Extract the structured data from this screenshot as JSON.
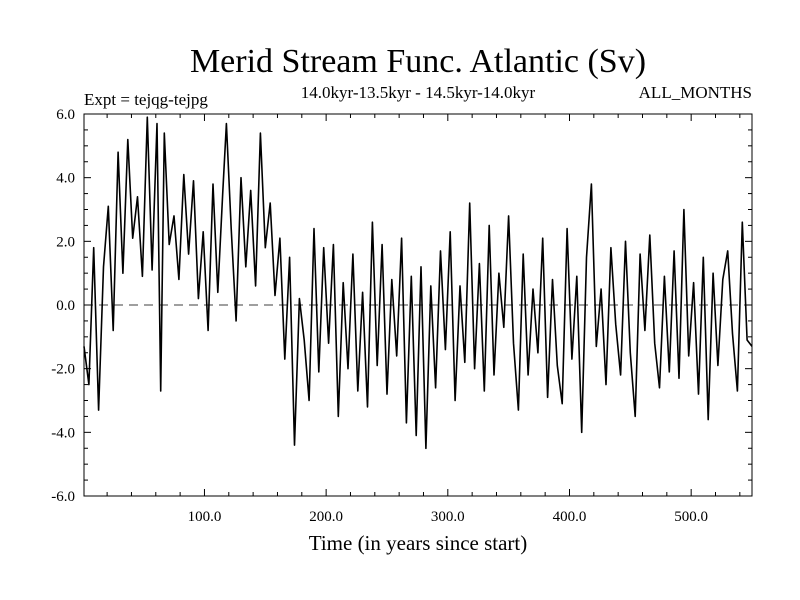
{
  "chart_data": {
    "type": "line",
    "title": "Merid Stream Func. Atlantic (Sv)",
    "subtitle_left": "Expt = tejqg-tejpg",
    "subtitle_center": "14.0kyr-13.5kyr - 14.5kyr-14.0kyr",
    "subtitle_right": "ALL_MONTHS",
    "xlabel": "Time (in years since start)",
    "ylabel": "",
    "xlim": [
      1,
      550
    ],
    "ylim": [
      -6,
      6
    ],
    "xticks": [
      100,
      200,
      300,
      400,
      500
    ],
    "xtick_labels": [
      "100.0",
      "200.0",
      "300.0",
      "400.0",
      "500.0"
    ],
    "yticks": [
      -6,
      -4,
      -2,
      0,
      2,
      4,
      6
    ],
    "ytick_labels": [
      "-6.0",
      "-4.0",
      "-2.0",
      "0.0",
      "2.0",
      "4.0",
      "6.0"
    ],
    "zero_line": "dashed",
    "series": [
      {
        "name": "Merid Stream Func. Atlantic",
        "x": [
          1,
          5,
          9,
          13,
          17,
          21,
          25,
          29,
          33,
          37,
          41,
          45,
          49,
          53,
          57,
          61,
          64,
          67,
          71,
          75,
          79,
          83,
          87,
          91,
          95,
          99,
          103,
          107,
          111,
          115,
          118,
          122,
          126,
          130,
          134,
          138,
          142,
          146,
          150,
          154,
          158,
          162,
          166,
          170,
          174,
          178,
          182,
          186,
          190,
          194,
          198,
          202,
          206,
          210,
          214,
          218,
          222,
          226,
          230,
          234,
          238,
          242,
          246,
          250,
          254,
          258,
          262,
          266,
          270,
          274,
          278,
          282,
          286,
          290,
          294,
          298,
          302,
          306,
          310,
          314,
          318,
          322,
          326,
          330,
          334,
          338,
          342,
          346,
          350,
          354,
          358,
          362,
          366,
          370,
          374,
          378,
          382,
          386,
          390,
          394,
          398,
          402,
          406,
          410,
          414,
          418,
          422,
          426,
          430,
          434,
          438,
          442,
          446,
          450,
          454,
          458,
          462,
          466,
          470,
          474,
          478,
          482,
          486,
          490,
          494,
          498,
          502,
          506,
          510,
          514,
          518,
          522,
          526,
          530,
          534,
          538,
          542,
          546,
          550
        ],
        "values": [
          -1.3,
          -2.5,
          1.8,
          -3.3,
          1.2,
          3.1,
          -0.8,
          4.8,
          1.0,
          5.2,
          2.1,
          3.4,
          0.9,
          5.9,
          1.1,
          5.7,
          -2.7,
          5.4,
          1.9,
          2.8,
          0.8,
          4.1,
          1.6,
          3.9,
          0.2,
          2.3,
          -0.8,
          3.8,
          0.4,
          3.5,
          5.7,
          2.4,
          -0.5,
          4.0,
          1.2,
          3.6,
          0.6,
          5.4,
          1.8,
          3.2,
          0.3,
          2.1,
          -1.7,
          1.5,
          -4.4,
          0.2,
          -1.1,
          -3.0,
          2.4,
          -2.1,
          1.8,
          -1.2,
          1.9,
          -3.5,
          0.7,
          -2.0,
          1.6,
          -2.7,
          0.4,
          -3.2,
          2.6,
          -1.9,
          1.9,
          -2.8,
          0.8,
          -1.6,
          2.1,
          -3.7,
          0.9,
          -4.1,
          1.2,
          -4.5,
          0.6,
          -2.6,
          1.7,
          -1.4,
          2.3,
          -3.0,
          0.6,
          -1.8,
          3.2,
          -2.0,
          1.3,
          -2.7,
          2.5,
          -2.2,
          1.0,
          -0.7,
          2.8,
          -1.2,
          -3.3,
          1.6,
          -2.2,
          0.5,
          -1.5,
          2.1,
          -2.9,
          0.8,
          -1.9,
          -3.1,
          2.4,
          -1.7,
          0.9,
          -4.0,
          1.5,
          3.8,
          -1.3,
          0.5,
          -2.5,
          1.8,
          -0.6,
          -2.2,
          2.0,
          -1.5,
          -3.5,
          1.6,
          -0.8,
          2.2,
          -1.2,
          -2.6,
          0.9,
          -2.1,
          1.7,
          -2.3,
          3.0,
          -1.6,
          0.7,
          -2.8,
          1.5,
          -3.6,
          1.0,
          -1.9,
          0.8,
          1.7,
          -0.9,
          -2.7,
          2.6,
          -1.1,
          -1.3
        ]
      }
    ]
  }
}
